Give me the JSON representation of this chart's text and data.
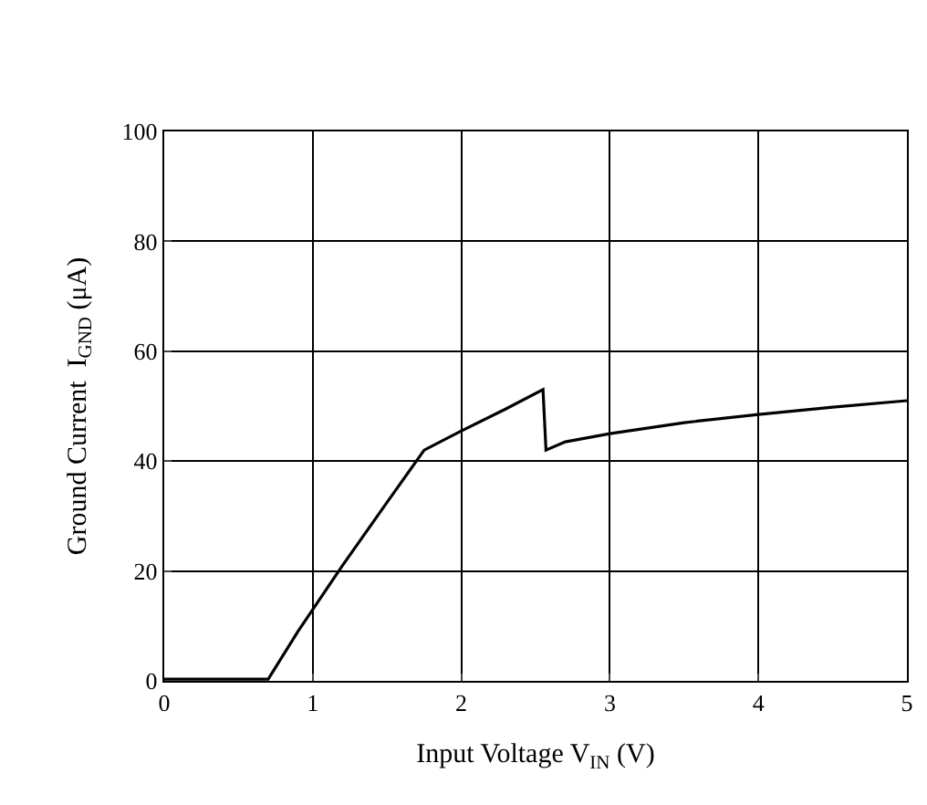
{
  "chart_data": {
    "type": "line",
    "xlabel": "Input Voltage V$_{IN}$ (V)",
    "ylabel": "Ground Current  I$_{GND}$ (μA)",
    "x": [
      0,
      0.3,
      0.7,
      0.9,
      1.2,
      1.5,
      1.75,
      2.0,
      2.3,
      2.55,
      2.57,
      2.7,
      3.0,
      3.5,
      4.0,
      4.5,
      5.0
    ],
    "series": [
      {
        "color": "#000000",
        "values": [
          0.3,
          0.3,
          0.3,
          9,
          21,
          32.5,
          42,
          45.5,
          49.5,
          53,
          42,
          43.5,
          45,
          47,
          48.5,
          49.8,
          51
        ]
      }
    ],
    "xlim": [
      0,
      5
    ],
    "xticks": [
      0,
      1,
      2,
      3,
      4,
      5
    ],
    "ylim": [
      0,
      100
    ],
    "yticks": [
      0,
      20,
      40,
      60,
      80,
      100
    ],
    "grid": true,
    "legend": false,
    "marker": "none",
    "line_style": "solid"
  }
}
